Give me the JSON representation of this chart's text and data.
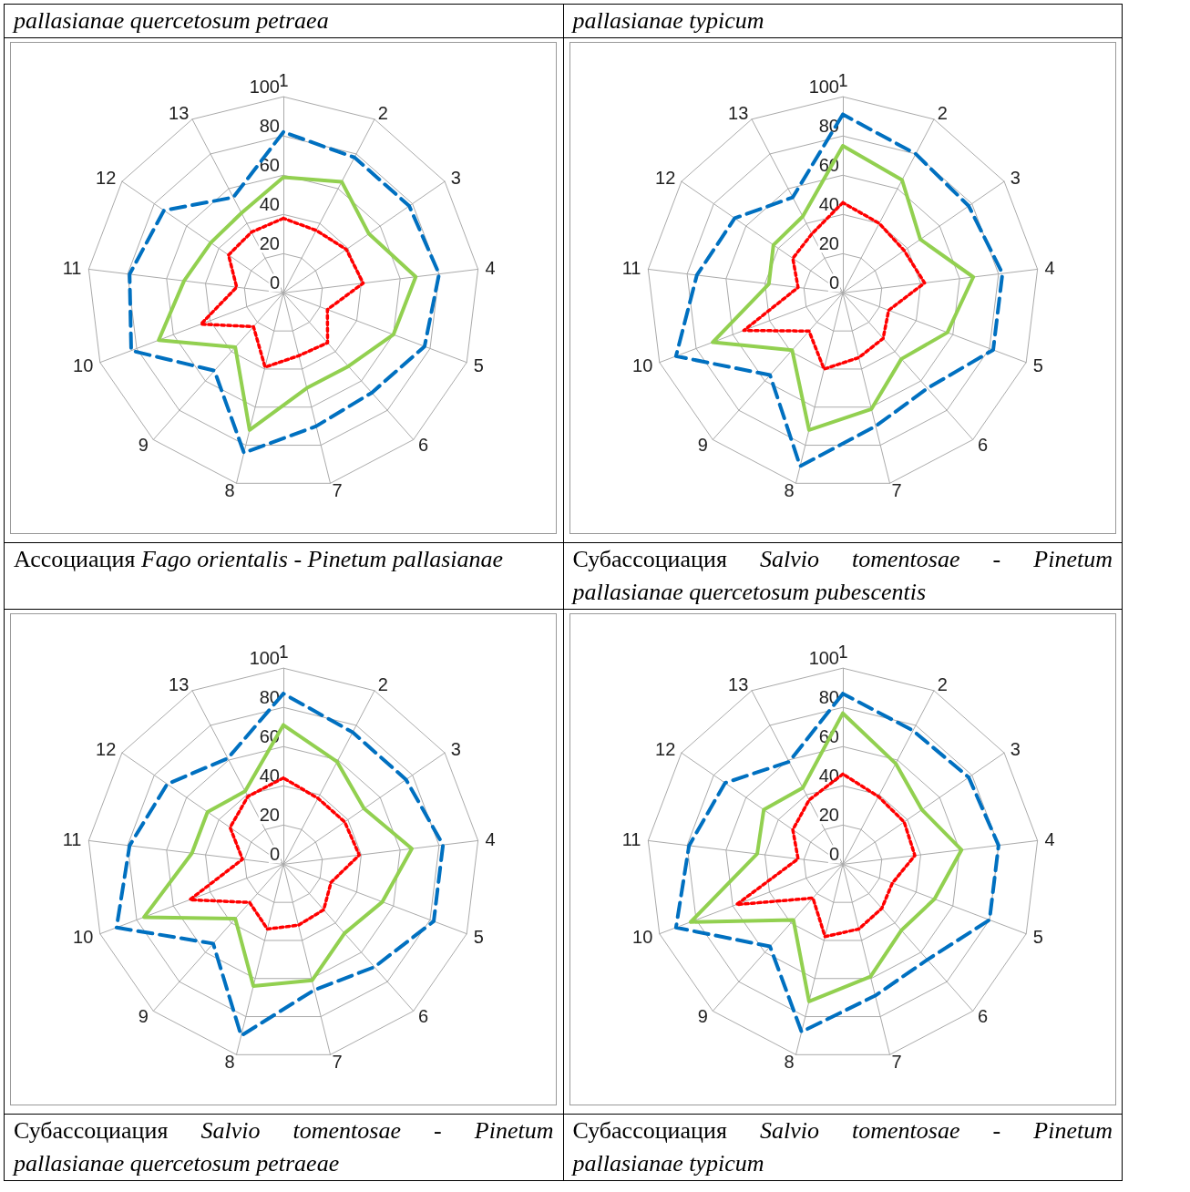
{
  "chart_data": [
    {
      "type": "radar",
      "title": "pallasianae quercetosum petraea",
      "annotations": [
        "Ассоциация",
        "Fago orientalis - Pinetum pallasianae"
      ],
      "categories": [
        "1",
        "2",
        "3",
        "4",
        "5",
        "6",
        "7",
        "8",
        "9",
        "10",
        "11",
        "12",
        "13"
      ],
      "ylim": [
        0,
        100
      ],
      "yticks": [
        0,
        20,
        40,
        60,
        80,
        100
      ],
      "marker": "none",
      "series": [
        {
          "color": "#0070c0",
          "line_style": "dashed",
          "values": [
            82,
            78,
            78,
            80,
            77,
            68,
            70,
            84,
            53,
            83,
            79,
            74,
            55
          ]
        },
        {
          "color": "#92d050",
          "line_style": "solid",
          "values": [
            59,
            64,
            53,
            68,
            60,
            50,
            50,
            72,
            37,
            68,
            51,
            45,
            46
          ]
        },
        {
          "color": "#ff0000",
          "line_style": "dotted",
          "values": [
            38,
            36,
            39,
            41,
            24,
            34,
            33,
            39,
            23,
            45,
            24,
            34,
            35
          ]
        }
      ]
    },
    {
      "type": "radar",
      "title": "pallasianae typicum",
      "annotations": [
        "Субассоциация",
        "Salvio tomentosae - Pinetum pallasianae quercetosum pubescentis"
      ],
      "categories": [
        "1",
        "2",
        "3",
        "4",
        "5",
        "6",
        "7",
        "8",
        "9",
        "10",
        "11",
        "12",
        "13"
      ],
      "ylim": [
        0,
        100
      ],
      "yticks": [
        0,
        20,
        40,
        60,
        80,
        100
      ],
      "marker": "none",
      "series": [
        {
          "color": "#0070c0",
          "line_style": "dashed",
          "values": [
            91,
            80,
            78,
            82,
            82,
            65,
            70,
            91,
            56,
            91,
            75,
            67,
            55
          ]
        },
        {
          "color": "#92d050",
          "line_style": "solid",
          "values": [
            75,
            65,
            48,
            67,
            57,
            45,
            61,
            72,
            39,
            71,
            38,
            43,
            44
          ]
        },
        {
          "color": "#ff0000",
          "line_style": "dotted",
          "values": [
            46,
            40,
            38,
            42,
            25,
            31,
            34,
            40,
            26,
            54,
            23,
            31,
            34
          ]
        }
      ]
    },
    {
      "type": "radar",
      "annotations": [
        "Субассоциация",
        "Salvio tomentosae - Pinetum pallasianae quercetosum petraeae"
      ],
      "categories": [
        "1",
        "2",
        "3",
        "4",
        "5",
        "6",
        "7",
        "8",
        "9",
        "10",
        "11",
        "12",
        "13"
      ],
      "ylim": [
        0,
        100
      ],
      "yticks": [
        0,
        20,
        40,
        60,
        80,
        100
      ],
      "marker": "none",
      "series": [
        {
          "color": "#0070c0",
          "line_style": "dashed",
          "values": [
            87,
            76,
            76,
            82,
            82,
            70,
            66,
            90,
            54,
            91,
            79,
            72,
            61
          ]
        },
        {
          "color": "#92d050",
          "line_style": "solid",
          "values": [
            71,
            59,
            50,
            66,
            54,
            47,
            61,
            64,
            37,
            76,
            47,
            47,
            42
          ]
        },
        {
          "color": "#ff0000",
          "line_style": "dotted",
          "values": [
            44,
            38,
            38,
            39,
            26,
            31,
            32,
            34,
            26,
            51,
            21,
            33,
            39
          ]
        }
      ]
    },
    {
      "type": "radar",
      "annotations": [
        "Субассоциация",
        "Salvio tomentosae - Pinetum pallasianae typicum"
      ],
      "categories": [
        "1",
        "2",
        "3",
        "4",
        "5",
        "6",
        "7",
        "8",
        "9",
        "10",
        "11",
        "12",
        "13"
      ],
      "ylim": [
        0,
        100
      ],
      "yticks": [
        0,
        20,
        40,
        60,
        80,
        100
      ],
      "marker": "none",
      "series": [
        {
          "color": "#0070c0",
          "line_style": "dashed",
          "values": [
            87,
            77,
            78,
            80,
            80,
            65,
            69,
            88,
            56,
            91,
            79,
            73,
            59
          ]
        },
        {
          "color": "#92d050",
          "line_style": "solid",
          "values": [
            77,
            58,
            49,
            61,
            50,
            45,
            59,
            72,
            38,
            83,
            44,
            49,
            44
          ]
        },
        {
          "color": "#ff0000",
          "line_style": "dotted",
          "values": [
            46,
            39,
            38,
            37,
            27,
            30,
            34,
            38,
            23,
            58,
            23,
            31,
            37
          ]
        }
      ]
    }
  ]
}
